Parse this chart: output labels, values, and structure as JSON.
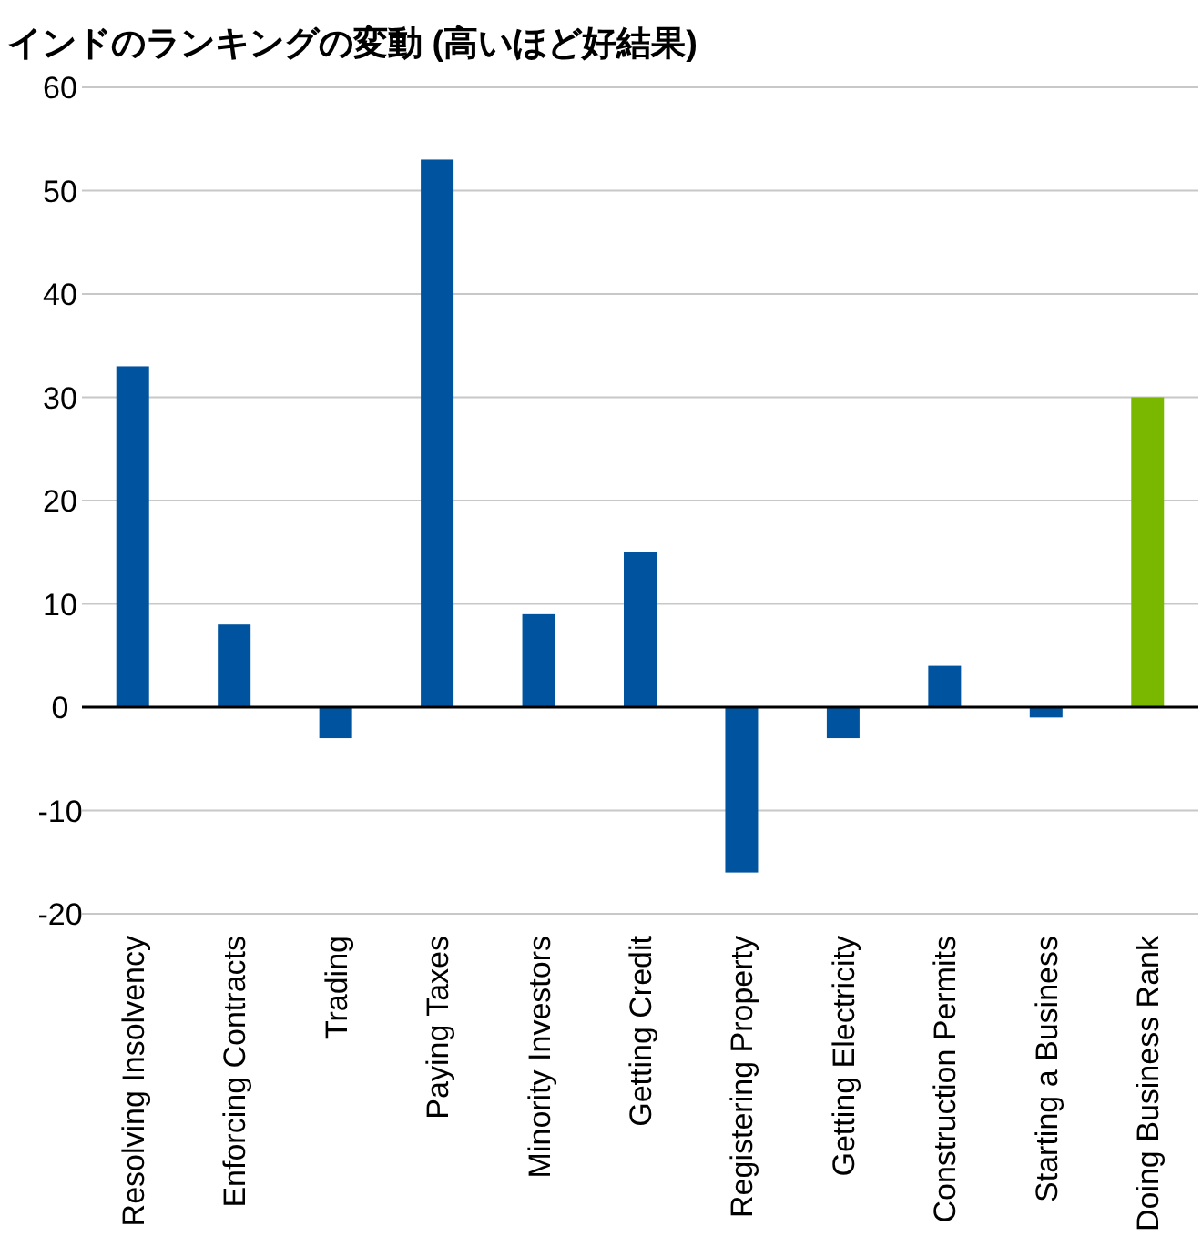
{
  "chart_data": {
    "type": "bar",
    "title": "インドのランキングの変動 (高いほど好結果)",
    "categories": [
      "Resolving Insolvency",
      "Enforcing Contracts",
      "Trading",
      "Paying Taxes",
      "Minority Investors",
      "Getting Credit",
      "Registering Property",
      "Getting Electricity",
      "Construction Permits",
      "Starting a Business",
      "Doing Business Rank"
    ],
    "values": [
      33,
      8,
      -3,
      53,
      9,
      15,
      -16,
      -3,
      4,
      -1,
      30
    ],
    "colors": [
      "#00549f",
      "#00549f",
      "#00549f",
      "#00549f",
      "#00549f",
      "#00549f",
      "#00549f",
      "#00549f",
      "#00549f",
      "#00549f",
      "#7ab800"
    ],
    "ylim": [
      -20,
      60
    ],
    "yticks": [
      -20,
      -10,
      0,
      10,
      20,
      30,
      40,
      50,
      60
    ],
    "grid": "y"
  }
}
